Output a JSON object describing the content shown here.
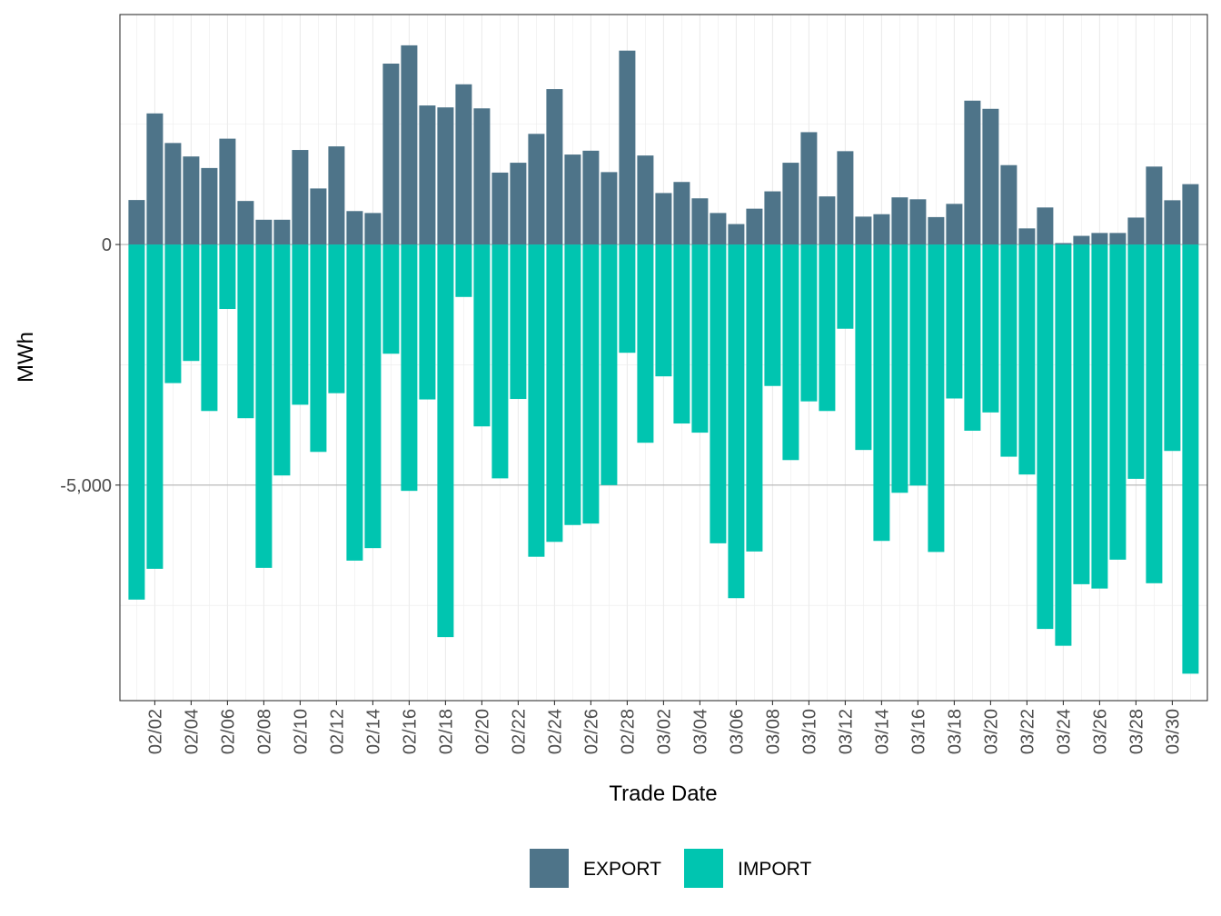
{
  "chart_data": {
    "type": "bar",
    "stacked": "diverging",
    "xlabel": "Trade Date",
    "ylabel": "MWh",
    "ylim": [
      -9480,
      4780
    ],
    "yticks": [
      0,
      -5000
    ],
    "ytick_labels": [
      "0",
      "-5,000"
    ],
    "grid": true,
    "legend_position": "bottom",
    "categories": [
      "02/01",
      "02/02",
      "02/03",
      "02/04",
      "02/05",
      "02/06",
      "02/07",
      "02/08",
      "02/09",
      "02/10",
      "02/11",
      "02/12",
      "02/13",
      "02/14",
      "02/15",
      "02/16",
      "02/17",
      "02/18",
      "02/19",
      "02/20",
      "02/21",
      "02/22",
      "02/23",
      "02/24",
      "02/25",
      "02/26",
      "02/27",
      "02/28",
      "03/01",
      "03/02",
      "03/03",
      "03/04",
      "03/05",
      "03/06",
      "03/07",
      "03/08",
      "03/09",
      "03/10",
      "03/11",
      "03/12",
      "03/13",
      "03/14",
      "03/15",
      "03/16",
      "03/17",
      "03/18",
      "03/19",
      "03/20",
      "03/21",
      "03/22",
      "03/23",
      "03/24",
      "03/25",
      "03/26",
      "03/27",
      "03/28",
      "03/29",
      "03/30",
      "03/31"
    ],
    "x_tick_labels": [
      "02/02",
      "02/04",
      "02/06",
      "02/08",
      "02/10",
      "02/12",
      "02/14",
      "02/16",
      "02/18",
      "02/20",
      "02/22",
      "02/24",
      "02/26",
      "02/28",
      "03/02",
      "03/04",
      "03/06",
      "03/08",
      "03/10",
      "03/12",
      "03/14",
      "03/16",
      "03/18",
      "03/20",
      "03/22",
      "03/24",
      "03/26",
      "03/28",
      "03/30"
    ],
    "series": [
      {
        "name": "EXPORT",
        "color": "#4e7489",
        "values": [
          925,
          2725,
          2110,
          1830,
          1590,
          2200,
          905,
          515,
          515,
          1965,
          1165,
          2040,
          695,
          655,
          3760,
          4140,
          2890,
          2850,
          3330,
          2830,
          1495,
          1700,
          2300,
          3230,
          1870,
          1950,
          1505,
          4030,
          1850,
          1070,
          1300,
          960,
          655,
          425,
          745,
          1105,
          1700,
          2335,
          1000,
          1940,
          580,
          630,
          980,
          940,
          570,
          845,
          2990,
          2820,
          1650,
          335,
          770,
          30,
          180,
          240,
          240,
          560,
          1620,
          920,
          1255
        ]
      },
      {
        "name": "IMPORT",
        "color": "#00c5b0",
        "values": [
          -7380,
          -6740,
          -2880,
          -2420,
          -3460,
          -1340,
          -3610,
          -6720,
          -4800,
          -3330,
          -4310,
          -3090,
          -6570,
          -6310,
          -2270,
          -5120,
          -3220,
          -8160,
          -1090,
          -3780,
          -4860,
          -3210,
          -6490,
          -6180,
          -5830,
          -5800,
          -5000,
          -2250,
          -4120,
          -2740,
          -3720,
          -3910,
          -6210,
          -7350,
          -6380,
          -2940,
          -4480,
          -3260,
          -3460,
          -1750,
          -4270,
          -6160,
          -5160,
          -5010,
          -6390,
          -3200,
          -3870,
          -3490,
          -4410,
          -4780,
          -7990,
          -8340,
          -7060,
          -7150,
          -6550,
          -4870,
          -7040,
          -4290,
          -8920
        ]
      }
    ]
  }
}
